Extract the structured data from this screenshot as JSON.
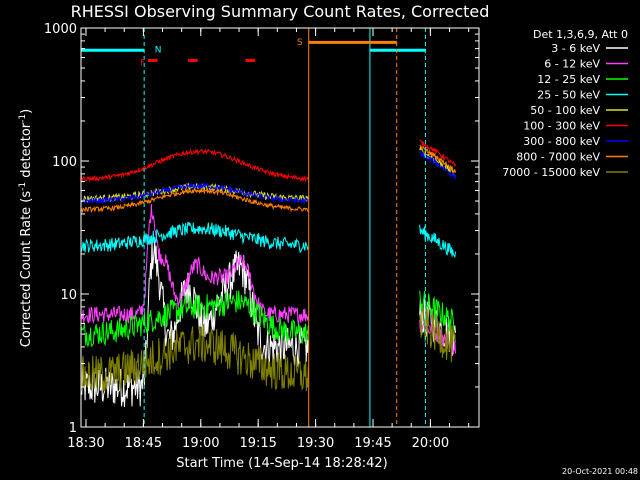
{
  "chart_data": {
    "type": "line",
    "title": "RHESSI Observing Summary Count Rates, Corrected",
    "xlabel": "Start Time (14-Sep-14 18:28:42)",
    "ylabel_parts": [
      "Corrected Count Rate (s",
      "-1",
      " detector",
      "-1",
      ")"
    ],
    "timestamp": "20-Oct-2021 00:48",
    "x_ticks": [
      "18:30",
      "18:45",
      "19:00",
      "19:15",
      "19:30",
      "19:45",
      "20:00"
    ],
    "x_tick_minutes": [
      1.3,
      16.3,
      31.3,
      46.3,
      61.3,
      76.3,
      91.3
    ],
    "y_ticks": [
      "1",
      "10",
      "100",
      "1000"
    ],
    "y_scale": "log",
    "ylim": [
      1,
      1000
    ],
    "xlim_minutes": [
      0,
      104
    ],
    "legend_title": "Det 1,3,6,9, Att 0",
    "series": [
      {
        "name": "3 - 6 keV",
        "color": "#ffffff"
      },
      {
        "name": "6 - 12 keV",
        "color": "#ff40ff"
      },
      {
        "name": "12 - 25 keV",
        "color": "#00ff00"
      },
      {
        "name": "25 - 50 keV",
        "color": "#00ffff"
      },
      {
        "name": "50 - 100 keV",
        "color": "#e0e020"
      },
      {
        "name": "100 - 300 keV",
        "color": "#ff0000"
      },
      {
        "name": "300 - 800 keV",
        "color": "#0000ff"
      },
      {
        "name": "800 - 7000 keV",
        "color": "#ff8000"
      },
      {
        "name": "7000 - 15000 keV",
        "color": "#808000"
      }
    ],
    "annotations": [
      {
        "label": "N",
        "color": "#00ffff",
        "x_minutes": 18.5
      },
      {
        "label": "F",
        "color": "#ff0000",
        "x_minutes": 17.5
      },
      {
        "label": "S",
        "color": "#ff8000",
        "x_minutes": 58.5
      }
    ]
  }
}
